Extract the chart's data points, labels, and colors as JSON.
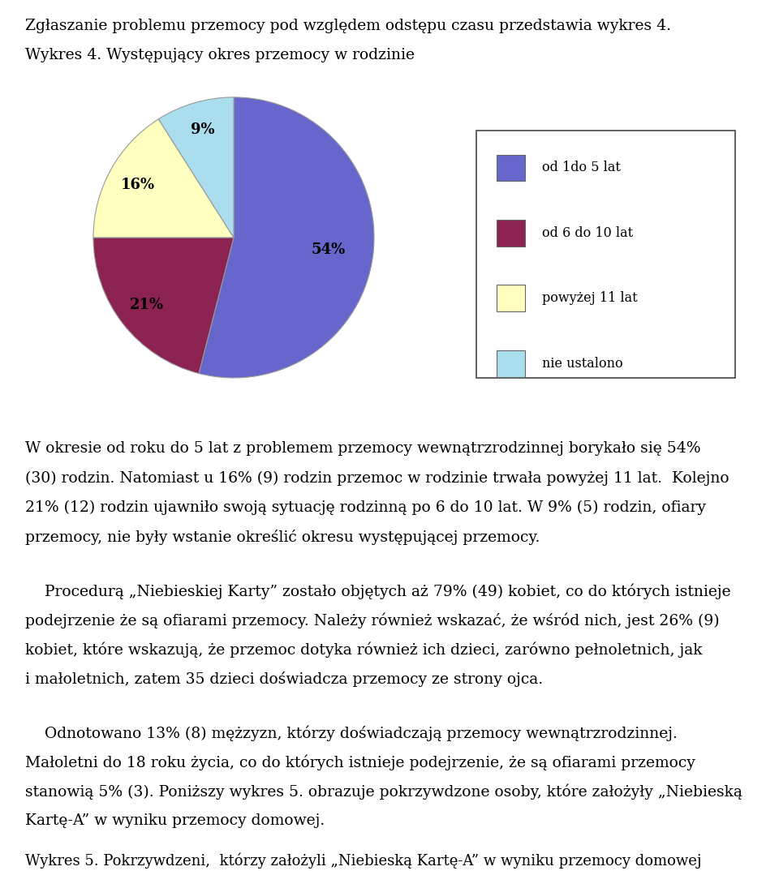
{
  "title_top": "Zgłaszanie problemu przemocy pod względem odstępu czasu przedstawia wykres 4.",
  "chart_title": "Wykres 4. Występujący okres przemocy w rodzinie",
  "sizes": [
    54,
    21,
    16,
    9
  ],
  "labels_pct": [
    "54%",
    "21%",
    "16%",
    "9%"
  ],
  "colors": [
    "#6666CC",
    "#8B2252",
    "#FFFFC0",
    "#AADDEE"
  ],
  "legend_labels": [
    "od 1do 5 lat",
    "od 6 do 10 lat",
    "powyżej 11 lat",
    "nie ustalono"
  ],
  "legend_colors": [
    "#6666CC",
    "#8B2252",
    "#FFFFC0",
    "#AADDEE"
  ],
  "para1_lines": [
    "W okresie od roku do 5 lat z problemem przemocy wewnątrzrodzinnej borykało się 54%",
    "(30) rodzin. Natomiast u 16% (9) rodzin przemoc w rodzinie trwała powyżej 11 lat.  Kolejno",
    "21% (12) rodzin ujawniło swoją sytuację rodzinną po 6 do 10 lat. W 9% (5) rodzin, ofiary",
    "przemocy, nie były wstanie określić okresu występującej przemocy."
  ],
  "para2_lines": [
    "    Procedurą „Niebieskiej Karty” zostało objętych aż 79% (49) kobiet, co do których istnieje",
    "podejrzenie że są ofiarami przemocy. Należy również wskazać, że wśród nich, jest 26% (9)",
    "kobiet, które wskazują, że przemoc dotyka również ich dzieci, zarówno pełnoletnich, jak",
    "i małoletnich, zatem 35 dzieci doświadcza przemocy ze strony ojca."
  ],
  "para3_lines": [
    "    Odnotowano 13% (8) mężzyzn, którzy doświadczają przemocy wewnątrzrodzinnej.",
    "Małoletni do 18 roku życia, co do których istnieje podejrzenie, że są ofiarami przemocy",
    "stanowią 5% (3). Poniższy wykres 5. obrazuje pokrzywdzone osoby, które założyły „Niebieską",
    "Kartę-A” w wyniku przemocy domowej."
  ],
  "footer": "Wykres 5. Pokrzywdzeni,  którzy założyli „Niebieską Kartę-A” w wyniku przemocy domowej",
  "bg_color": "#FFFFFF",
  "text_color": "#000000",
  "font_size_body": 13.5,
  "font_size_title": 13.5,
  "font_size_footer": 13.0,
  "font_size_pie_label": 13.0
}
